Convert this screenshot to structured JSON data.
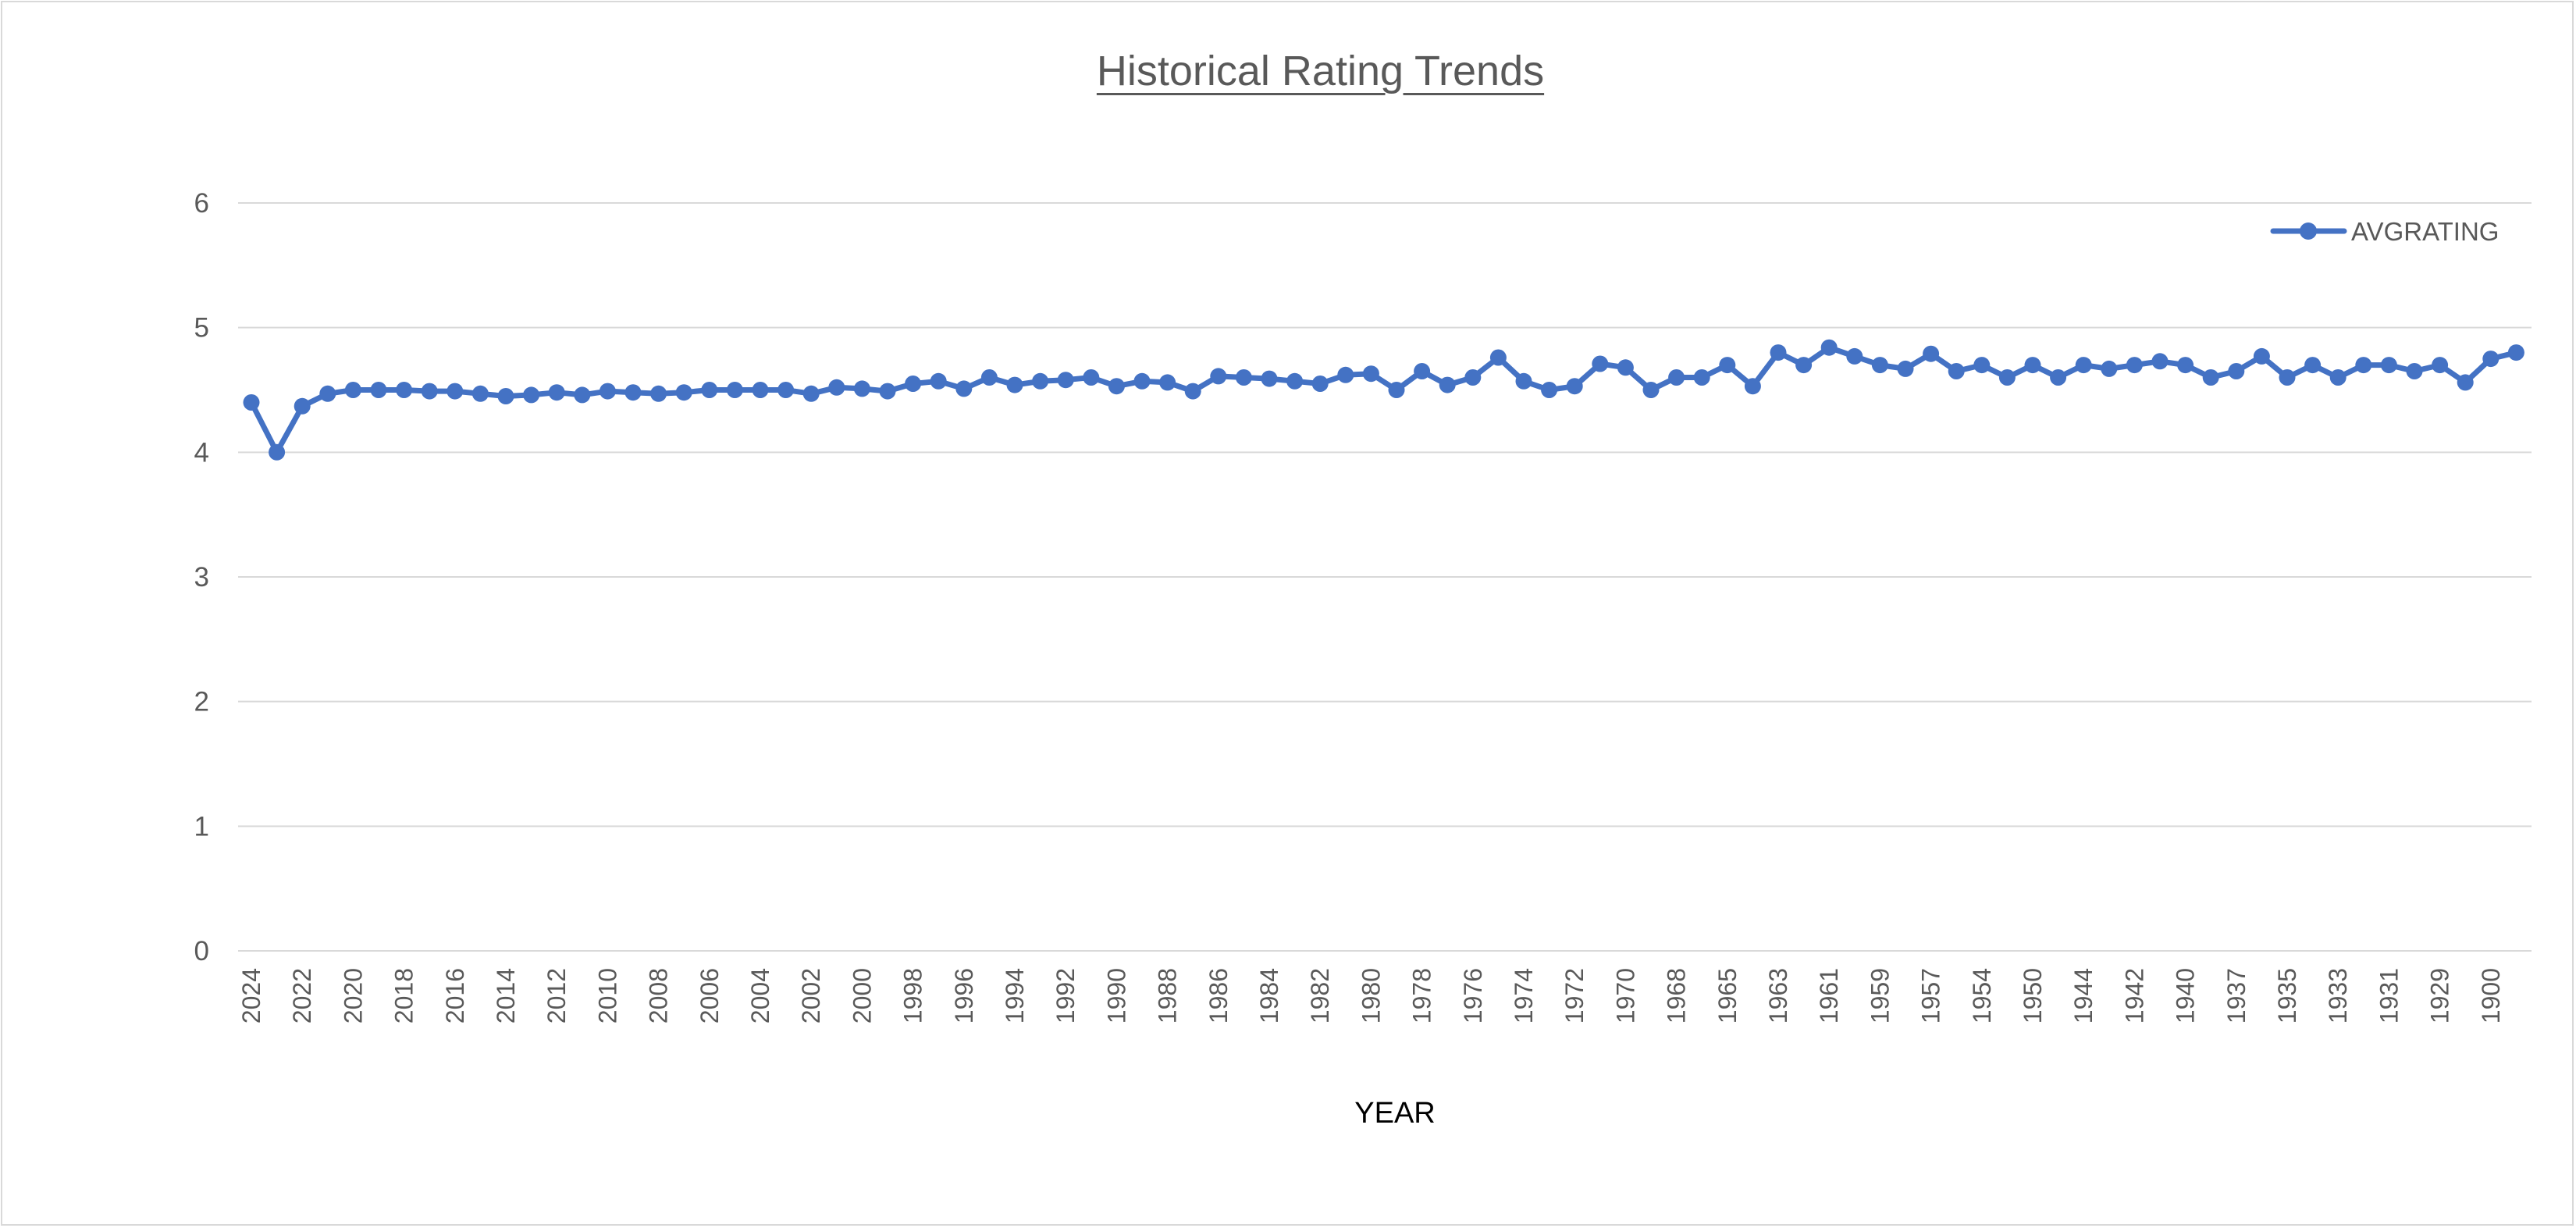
{
  "chart_data": {
    "type": "line",
    "title": "Historical Rating Trends",
    "xlabel": "YEAR",
    "ylabel": "",
    "ylim": [
      0,
      6
    ],
    "yticks": [
      0,
      1,
      2,
      3,
      4,
      5,
      6
    ],
    "grid": true,
    "legend_position": "top-right",
    "series_color": "#4472c4",
    "x_tick_labels": [
      "2024",
      "2022",
      "2020",
      "2018",
      "2016",
      "2014",
      "2012",
      "2010",
      "2008",
      "2006",
      "2004",
      "2002",
      "2000",
      "1998",
      "1996",
      "1994",
      "1992",
      "1990",
      "1988",
      "1986",
      "1984",
      "1982",
      "1980",
      "1978",
      "1976",
      "1974",
      "1972",
      "1970",
      "1968",
      "1965",
      "1963",
      "1961",
      "1959",
      "1957",
      "1954",
      "1950",
      "1944",
      "1942",
      "1940",
      "1937",
      "1935",
      "1933",
      "1931",
      "1929",
      "1900"
    ],
    "series": [
      {
        "name": "AVGRATING",
        "values": [
          4.4,
          4.0,
          4.37,
          4.47,
          4.5,
          4.5,
          4.5,
          4.49,
          4.49,
          4.47,
          4.45,
          4.46,
          4.48,
          4.46,
          4.49,
          4.48,
          4.47,
          4.48,
          4.5,
          4.5,
          4.5,
          4.5,
          4.47,
          4.52,
          4.51,
          4.49,
          4.55,
          4.57,
          4.51,
          4.6,
          4.54,
          4.57,
          4.58,
          4.6,
          4.53,
          4.57,
          4.56,
          4.49,
          4.61,
          4.6,
          4.59,
          4.57,
          4.55,
          4.62,
          4.63,
          4.5,
          4.65,
          4.54,
          4.6,
          4.76,
          4.57,
          4.5,
          4.53,
          4.71,
          4.68,
          4.5,
          4.6,
          4.6,
          4.7,
          4.53,
          4.8,
          4.7,
          4.84,
          4.77,
          4.7,
          4.67,
          4.79,
          4.65,
          4.7,
          4.6,
          4.7,
          4.6,
          4.7,
          4.67,
          4.7,
          4.73,
          4.7,
          4.6,
          4.65,
          4.77,
          4.6,
          4.7,
          4.6,
          4.7,
          4.7,
          4.65,
          4.7,
          4.56,
          4.75,
          4.8
        ]
      }
    ]
  }
}
